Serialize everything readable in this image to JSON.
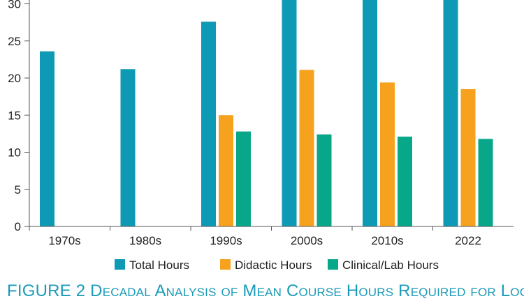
{
  "chart_data": {
    "type": "bar",
    "categories": [
      "1970s",
      "1980s",
      "1990s",
      "2000s",
      "2010s",
      "2022"
    ],
    "series": [
      {
        "name": "Total Hours",
        "color": "#0e9ab4",
        "values": [
          23.6,
          21.2,
          27.6,
          31.5,
          31.0,
          31.0
        ]
      },
      {
        "name": "Didactic Hours",
        "color": "#f7a21e",
        "values": [
          null,
          null,
          15.0,
          21.1,
          19.4,
          18.5
        ]
      },
      {
        "name": "Clinical/Lab Hours",
        "color": "#08a78a",
        "values": [
          null,
          null,
          12.8,
          12.4,
          12.1,
          11.8
        ]
      }
    ],
    "yticks": [
      0,
      5,
      10,
      15,
      20,
      25,
      30
    ],
    "ylim": [
      0,
      30.5
    ],
    "grid": false,
    "legend_position": "bottom"
  },
  "caption": {
    "figure_label": "FIGURE 2",
    "text": "Decadal Analysis of Mean Course Hours Required for Local"
  }
}
